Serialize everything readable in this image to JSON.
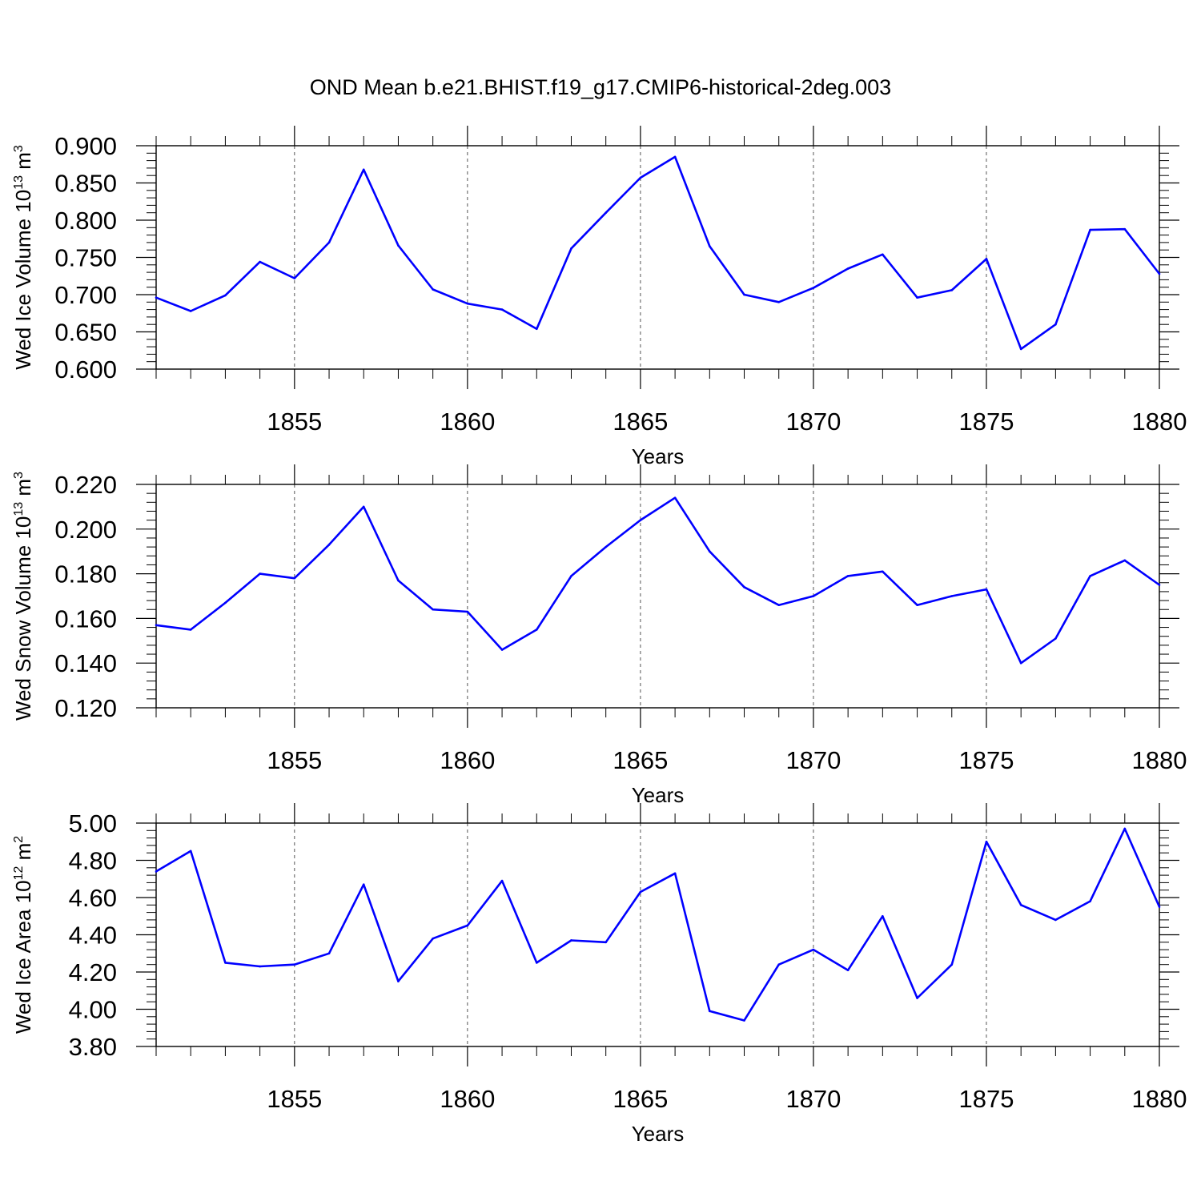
{
  "figure": {
    "title": "OND Mean b.e21.BHIST.f19_g17.CMIP6-historical-2deg.003",
    "line_color": "#0000ff"
  },
  "chart_data": [
    {
      "type": "line",
      "title": "OND Mean b.e21.BHIST.f19_g17.CMIP6-historical-2deg.003",
      "ylabel": "Wed Ice Volume",
      "ylabel_unit_base": "10",
      "ylabel_unit_exp": "13",
      "ylabel_unit_suffix": "m",
      "ylabel_unit_suffix_exp": "3",
      "xlabel": "Years",
      "xlim": [
        1851,
        1880
      ],
      "ylim": [
        0.6,
        0.9
      ],
      "x_ticks": [
        "1855",
        "1860",
        "1865",
        "1870",
        "1875",
        "1880"
      ],
      "y_ticks": [
        "0.600",
        "0.650",
        "0.700",
        "0.750",
        "0.800",
        "0.850",
        "0.900"
      ],
      "vertical_grid": "dashed at major x ticks",
      "x": [
        1851,
        1852,
        1853,
        1854,
        1855,
        1856,
        1857,
        1858,
        1859,
        1860,
        1861,
        1862,
        1863,
        1864,
        1865,
        1866,
        1867,
        1868,
        1869,
        1870,
        1871,
        1872,
        1873,
        1874,
        1875,
        1876,
        1877,
        1878,
        1879,
        1880
      ],
      "series": [
        {
          "values": [
            0.696,
            0.678,
            0.699,
            0.744,
            0.722,
            0.77,
            0.868,
            0.766,
            0.707,
            0.688,
            0.68,
            0.654,
            0.762,
            0.81,
            0.857,
            0.885,
            0.765,
            0.7,
            0.69,
            0.709,
            0.735,
            0.754,
            0.696,
            0.706,
            0.748,
            0.627,
            0.66,
            0.787,
            0.788,
            0.728
          ]
        }
      ]
    },
    {
      "type": "line",
      "ylabel": "Wed Snow Volume",
      "ylabel_unit_base": "10",
      "ylabel_unit_exp": "13",
      "ylabel_unit_suffix": "m",
      "ylabel_unit_suffix_exp": "3",
      "xlabel": "Years",
      "xlim": [
        1851,
        1880
      ],
      "ylim": [
        0.12,
        0.22
      ],
      "x_ticks": [
        "1855",
        "1860",
        "1865",
        "1870",
        "1875",
        "1880"
      ],
      "y_ticks": [
        "0.120",
        "0.140",
        "0.160",
        "0.180",
        "0.200",
        "0.220"
      ],
      "vertical_grid": "dashed at major x ticks",
      "x": [
        1851,
        1852,
        1853,
        1854,
        1855,
        1856,
        1857,
        1858,
        1859,
        1860,
        1861,
        1862,
        1863,
        1864,
        1865,
        1866,
        1867,
        1868,
        1869,
        1870,
        1871,
        1872,
        1873,
        1874,
        1875,
        1876,
        1877,
        1878,
        1879,
        1880
      ],
      "series": [
        {
          "values": [
            0.157,
            0.155,
            0.167,
            0.18,
            0.178,
            0.193,
            0.21,
            0.177,
            0.164,
            0.163,
            0.146,
            0.155,
            0.179,
            0.192,
            0.204,
            0.214,
            0.19,
            0.174,
            0.166,
            0.17,
            0.179,
            0.181,
            0.166,
            0.17,
            0.173,
            0.14,
            0.151,
            0.179,
            0.186,
            0.175
          ]
        }
      ]
    },
    {
      "type": "line",
      "ylabel": "Wed Ice Area",
      "ylabel_unit_base": "10",
      "ylabel_unit_exp": "12",
      "ylabel_unit_suffix": "m",
      "ylabel_unit_suffix_exp": "2",
      "xlabel": "Years",
      "xlim": [
        1851,
        1880
      ],
      "ylim": [
        3.8,
        5.0
      ],
      "x_ticks": [
        "1855",
        "1860",
        "1865",
        "1870",
        "1875",
        "1880"
      ],
      "y_ticks": [
        "3.80",
        "4.00",
        "4.20",
        "4.40",
        "4.60",
        "4.80",
        "5.00"
      ],
      "vertical_grid": "dashed at major x ticks",
      "x": [
        1851,
        1852,
        1853,
        1854,
        1855,
        1856,
        1857,
        1858,
        1859,
        1860,
        1861,
        1862,
        1863,
        1864,
        1865,
        1866,
        1867,
        1868,
        1869,
        1870,
        1871,
        1872,
        1873,
        1874,
        1875,
        1876,
        1877,
        1878,
        1879,
        1880
      ],
      "series": [
        {
          "values": [
            4.74,
            4.85,
            4.25,
            4.23,
            4.24,
            4.3,
            4.67,
            4.15,
            4.38,
            4.45,
            4.69,
            4.25,
            4.37,
            4.36,
            4.63,
            4.73,
            3.99,
            3.94,
            4.24,
            4.32,
            4.21,
            4.5,
            4.06,
            4.24,
            4.9,
            4.56,
            4.48,
            4.58,
            4.97,
            4.55
          ]
        }
      ]
    }
  ]
}
